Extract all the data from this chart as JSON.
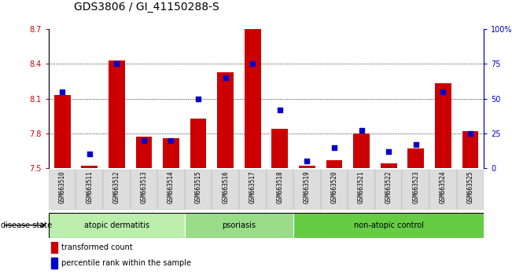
{
  "title": "GDS3806 / GI_41150288-S",
  "samples": [
    "GSM663510",
    "GSM663511",
    "GSM663512",
    "GSM663513",
    "GSM663514",
    "GSM663515",
    "GSM663516",
    "GSM663517",
    "GSM663518",
    "GSM663519",
    "GSM663520",
    "GSM663521",
    "GSM663522",
    "GSM663523",
    "GSM663524",
    "GSM663525"
  ],
  "transformed_count": [
    8.13,
    7.52,
    8.43,
    7.77,
    7.76,
    7.93,
    8.33,
    8.7,
    7.84,
    7.52,
    7.57,
    7.8,
    7.54,
    7.67,
    8.23,
    7.82
  ],
  "percentile_rank": [
    55,
    10,
    75,
    20,
    20,
    50,
    65,
    75,
    42,
    5,
    15,
    27,
    12,
    17,
    55,
    25
  ],
  "ylim_left": [
    7.5,
    8.7
  ],
  "ylim_right": [
    0,
    100
  ],
  "yticks_left": [
    7.5,
    7.8,
    8.1,
    8.4,
    8.7
  ],
  "yticks_right": [
    0,
    25,
    50,
    75,
    100
  ],
  "ytick_labels_right": [
    "0",
    "25",
    "50",
    "75",
    "100%"
  ],
  "grid_lines": [
    7.8,
    8.1,
    8.4
  ],
  "bar_color": "#cc0000",
  "dot_color": "#0000cc",
  "groups": [
    {
      "label": "atopic dermatitis",
      "start": 0,
      "end": 4,
      "color": "#bbeeaa"
    },
    {
      "label": "psoriasis",
      "start": 5,
      "end": 8,
      "color": "#99dd88"
    },
    {
      "label": "non-atopic control",
      "start": 9,
      "end": 15,
      "color": "#66cc44"
    }
  ],
  "disease_state_label": "disease state",
  "legend_items": [
    {
      "label": "transformed count",
      "color": "#cc0000"
    },
    {
      "label": "percentile rank within the sample",
      "color": "#0000cc"
    }
  ],
  "title_fontsize": 10,
  "tick_label_fontsize": 7,
  "sample_fontsize": 5.5,
  "group_fontsize": 7,
  "legend_fontsize": 7
}
